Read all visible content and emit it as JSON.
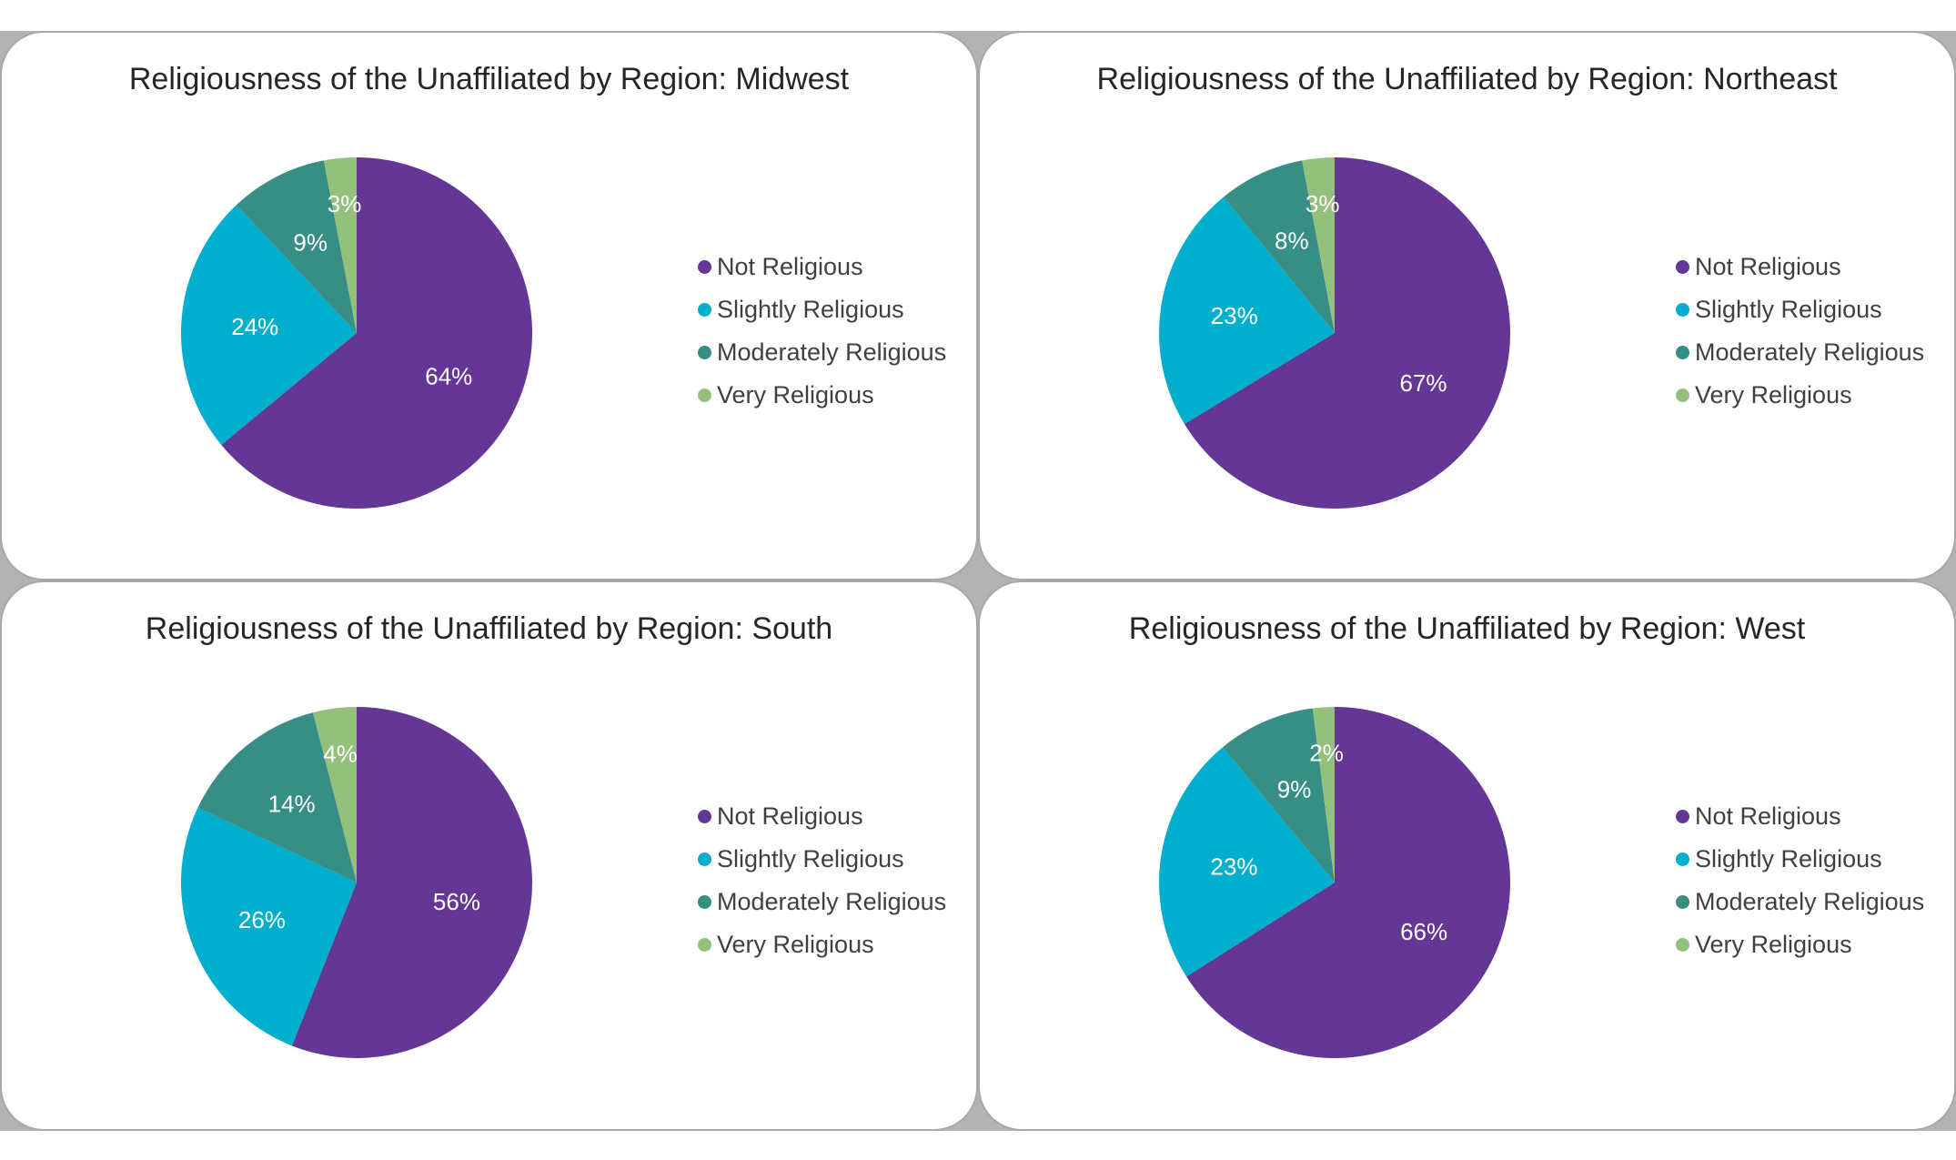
{
  "colors": {
    "not_religious": "#643695",
    "slightly_religious": "#00aecd",
    "moderately_religious": "#368e84",
    "very_religious": "#93c17c"
  },
  "chart_data": [
    {
      "type": "pie",
      "title": "Religiousness of the Unaffiliated by Region: Midwest",
      "legend": "right",
      "slices": [
        {
          "name": "Not Religious",
          "value": 64,
          "label": "64%"
        },
        {
          "name": "Slightly Religious",
          "value": 24,
          "label": "24%"
        },
        {
          "name": "Moderately Religious",
          "value": 9,
          "label": "9%"
        },
        {
          "name": "Very Religious",
          "value": 3,
          "label": "3%"
        }
      ]
    },
    {
      "type": "pie",
      "title": "Religiousness of the Unaffiliated by Region: Northeast",
      "legend": "right",
      "slices": [
        {
          "name": "Not Religious",
          "value": 67,
          "label": "67%"
        },
        {
          "name": "Slightly Religious",
          "value": 23,
          "label": "23%"
        },
        {
          "name": "Moderately Religious",
          "value": 8,
          "label": "8%"
        },
        {
          "name": "Very Religious",
          "value": 3,
          "label": "3%"
        }
      ]
    },
    {
      "type": "pie",
      "title": "Religiousness of the Unaffiliated by Region: South",
      "legend": "right",
      "slices": [
        {
          "name": "Not Religious",
          "value": 56,
          "label": "56%"
        },
        {
          "name": "Slightly Religious",
          "value": 26,
          "label": "26%"
        },
        {
          "name": "Moderately Religious",
          "value": 14,
          "label": "14%"
        },
        {
          "name": "Very Religious",
          "value": 4,
          "label": "4%"
        }
      ]
    },
    {
      "type": "pie",
      "title": "Religiousness of the Unaffiliated by Region: West",
      "legend": "right",
      "slices": [
        {
          "name": "Not Religious",
          "value": 66,
          "label": "66%"
        },
        {
          "name": "Slightly Religious",
          "value": 23,
          "label": "23%"
        },
        {
          "name": "Moderately Religious",
          "value": 9,
          "label": "9%"
        },
        {
          "name": "Very Religious",
          "value": 2,
          "label": "2%"
        }
      ]
    }
  ]
}
